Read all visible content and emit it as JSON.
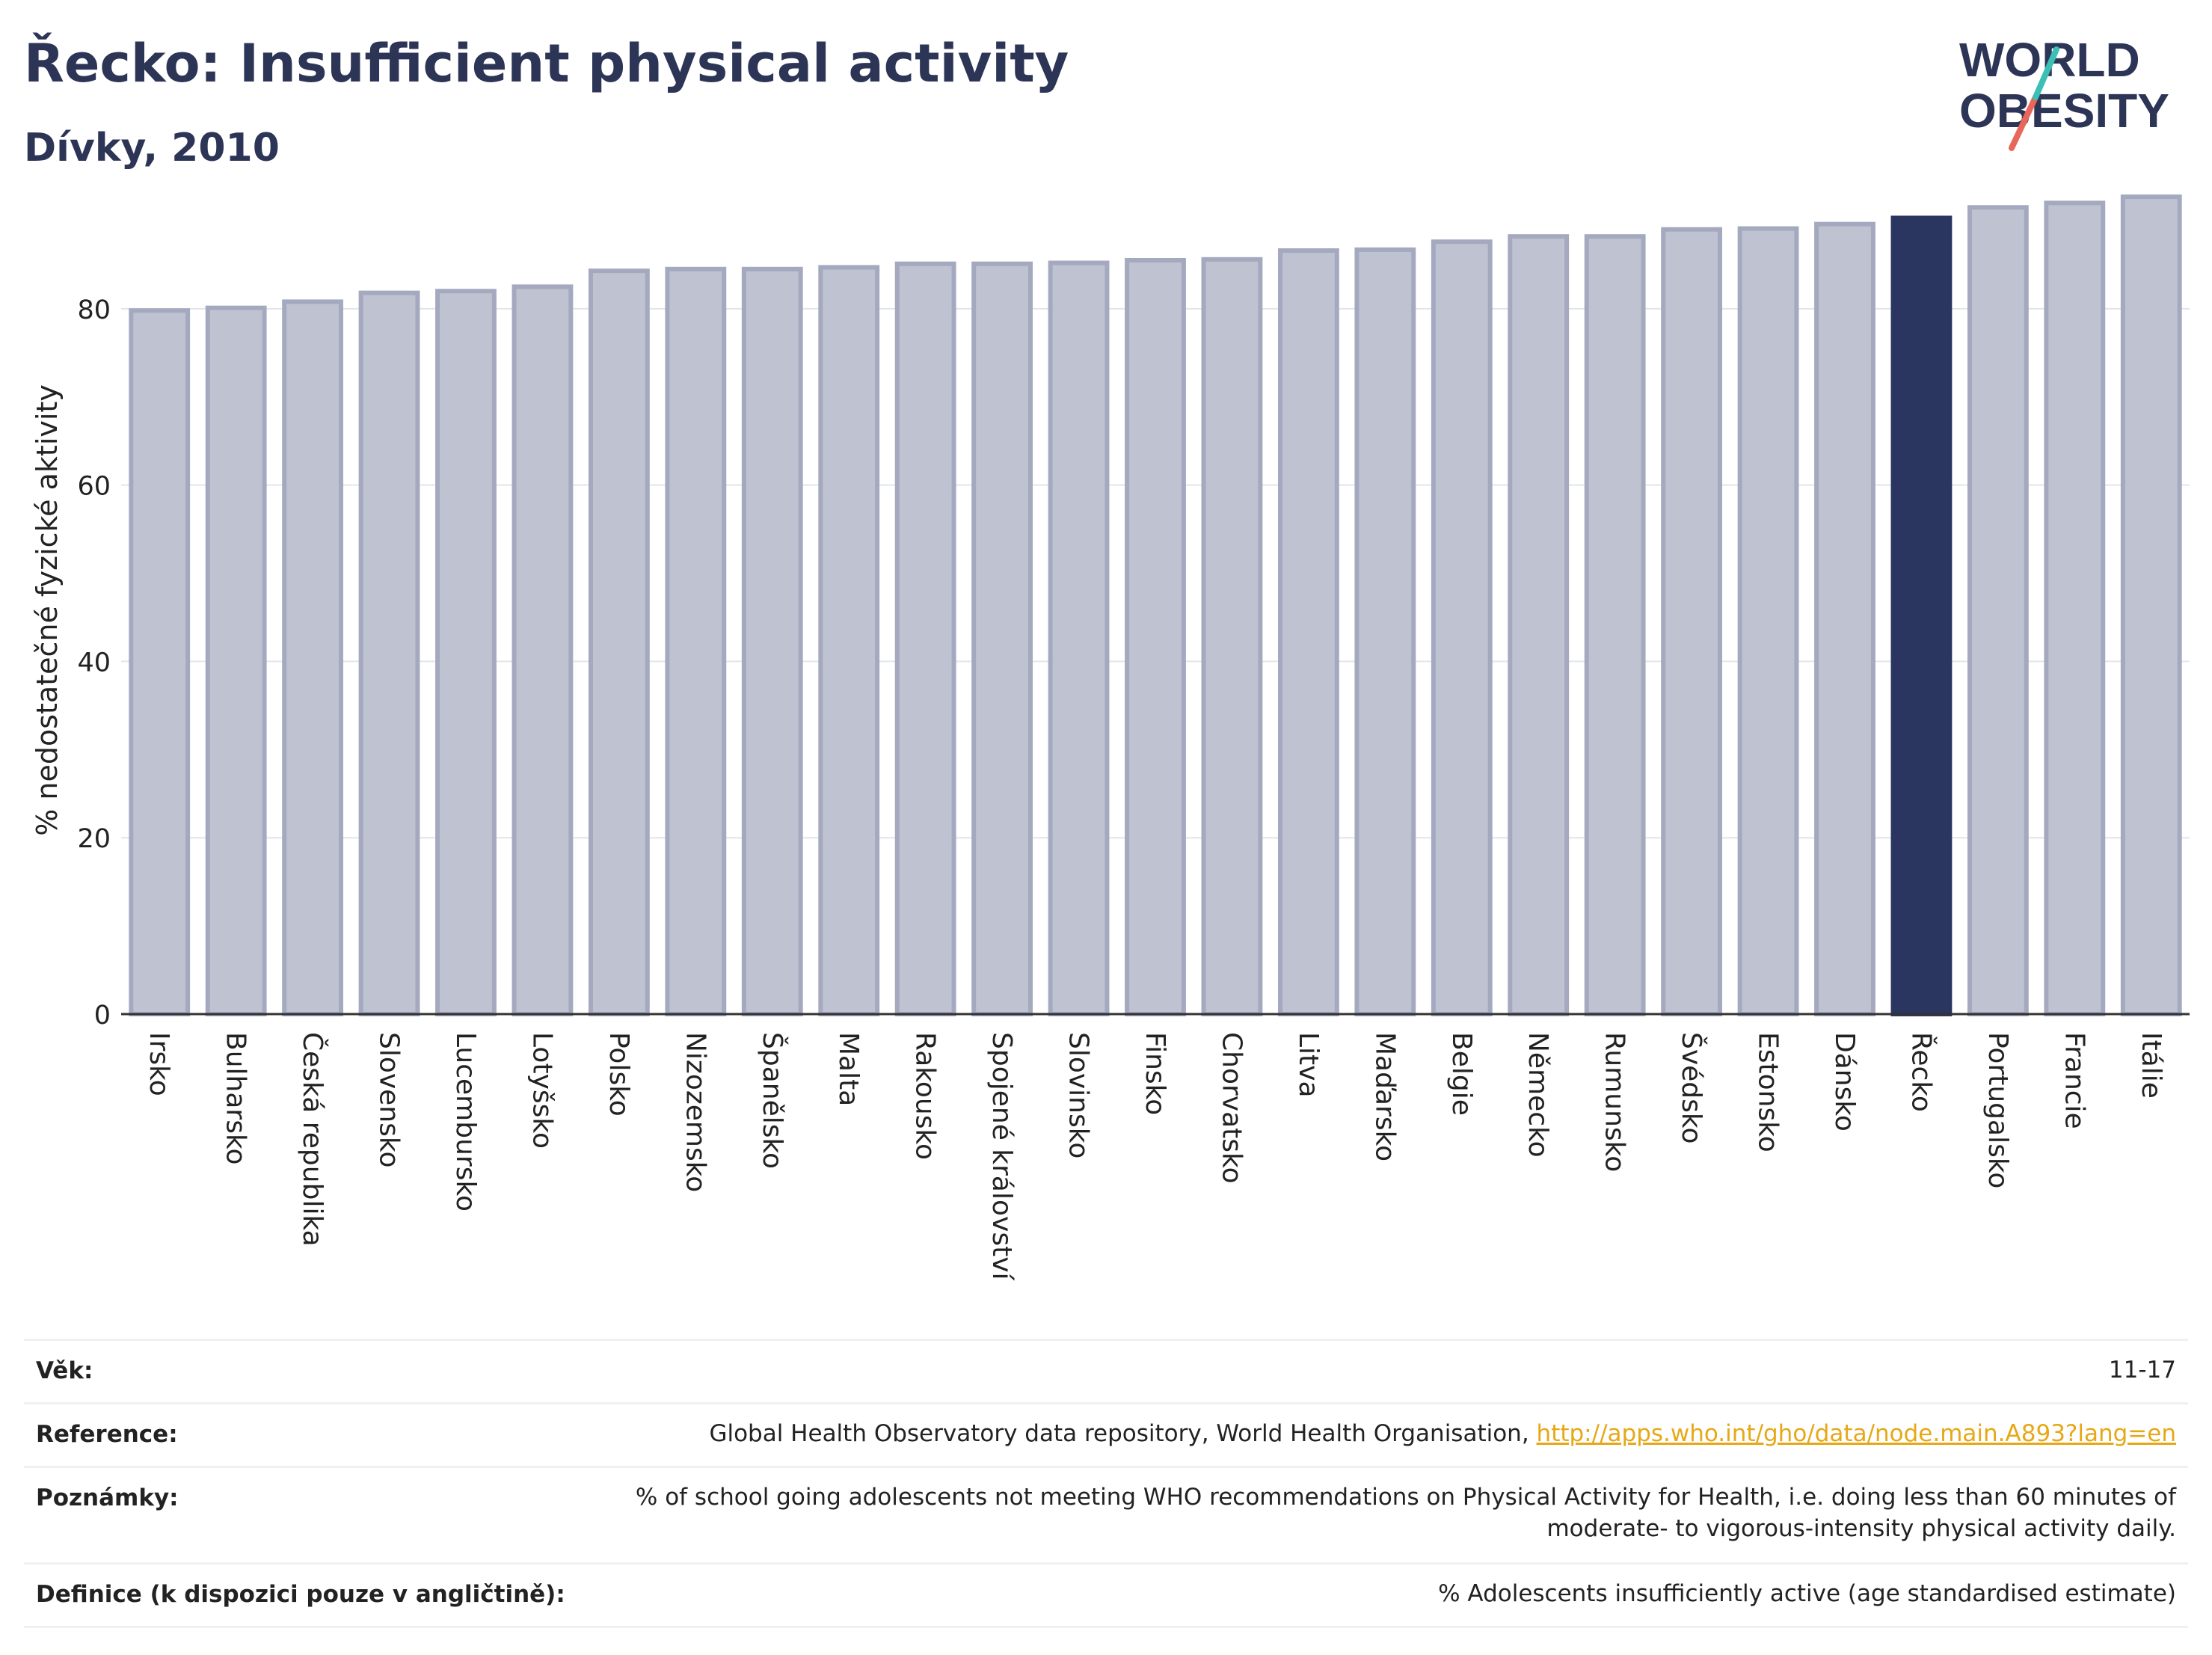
{
  "title": "Řecko: Insufficient physical activity",
  "subtitle": "Dívky, 2010",
  "logo": {
    "line1": "WORLD",
    "line2": "OBESITY"
  },
  "chart_data": {
    "type": "bar",
    "ylabel": "% nedostatečné fyzické aktivity",
    "ylim": [
      0,
      95
    ],
    "yticks": [
      0,
      20,
      40,
      60,
      80
    ],
    "grid": true,
    "highlight": "Řecko",
    "colors": {
      "bar": "#bfc2d0",
      "bar_edge": "#a4a9bf",
      "highlight": "#2a3560",
      "grid": "#e3e5ec"
    },
    "categories": [
      "Irsko",
      "Bulharsko",
      "Česká republika",
      "Slovensko",
      "Lucembursko",
      "Lotyšsko",
      "Polsko",
      "Nizozemsko",
      "Španělsko",
      "Malta",
      "Rakousko",
      "Spojené království",
      "Slovinsko",
      "Finsko",
      "Chorvatsko",
      "Litva",
      "Maďarsko",
      "Belgie",
      "Německo",
      "Rumunsko",
      "Švédsko",
      "Estonsko",
      "Dánsko",
      "Řecko",
      "Portugalsko",
      "Francie",
      "Itálie"
    ],
    "values": [
      79.8,
      80.1,
      80.8,
      81.8,
      82.0,
      82.5,
      84.3,
      84.5,
      84.5,
      84.7,
      85.1,
      85.1,
      85.2,
      85.5,
      85.6,
      86.6,
      86.7,
      87.6,
      88.2,
      88.2,
      89.0,
      89.1,
      89.6,
      90.3,
      91.5,
      92.0,
      92.7
    ]
  },
  "meta": [
    {
      "label": "Věk:",
      "value": "11-17"
    },
    {
      "label": "Reference:",
      "value": "Global Health Observatory data repository, World Health Organisation, ",
      "link": "http://apps.who.int/gho/data/node.main.A893?lang=en"
    },
    {
      "label": "Poznámky:",
      "value_lines": [
        "% of school going adolescents not meeting WHO recommendations on Physical Activity for Health, i.e. doing less than 60 minutes of",
        "moderate- to vigorous-intensity physical activity daily."
      ]
    },
    {
      "label": "Definice (k dispozici pouze v angličtině):",
      "value": "% Adolescents insufficiently active (age standardised estimate)"
    }
  ]
}
